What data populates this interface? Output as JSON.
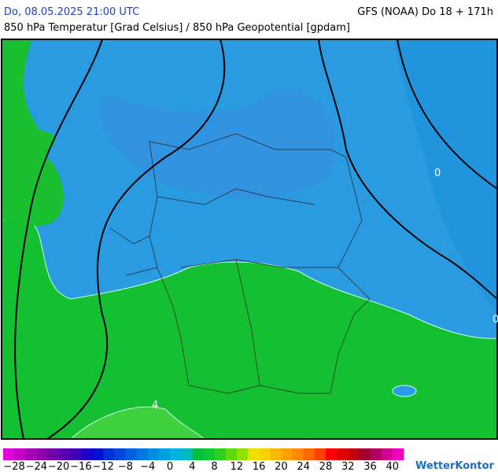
{
  "header": {
    "left": "Do, 08.05.2025 21:00 UTC",
    "right": "GFS (NOAA) Do 18 + 171h",
    "subtitle": "850 hPa Temperatur [Grad Celsius] / 850 hPa Geopotential [gpdam]"
  },
  "map": {
    "contour_labels": [
      "0",
      "0",
      "4"
    ]
  },
  "legend": {
    "ticks": [
      {
        "value": -28,
        "label": "−28"
      },
      {
        "value": -24,
        "label": "−24"
      },
      {
        "value": -20,
        "label": "−20"
      },
      {
        "value": -16,
        "label": "−16"
      },
      {
        "value": -12,
        "label": "−12"
      },
      {
        "value": -8,
        "label": "−8"
      },
      {
        "value": -4,
        "label": "−4"
      },
      0,
      4,
      8,
      12,
      16,
      20,
      24,
      28,
      32,
      36,
      40
    ]
  },
  "brand": "WetterKontor"
}
